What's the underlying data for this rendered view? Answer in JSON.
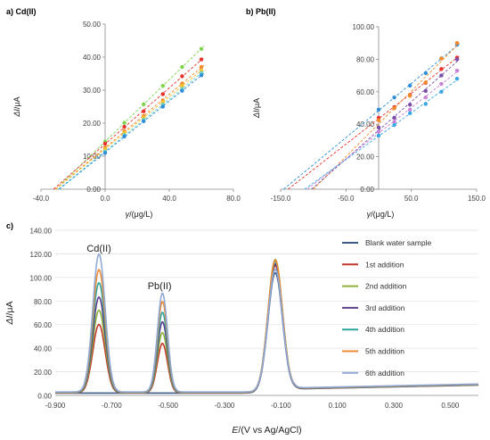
{
  "chart_data": [
    {
      "type": "scatter",
      "panel_label": "a) Cd(II)",
      "xlabel_italic": "γ",
      "xlabel": "/(μg/L)",
      "ylabel_italic": "ΔI",
      "ylabel": "/μA",
      "xlim": [
        -40,
        80
      ],
      "ylim": [
        0,
        50
      ],
      "xticks": [
        "-40.0",
        "0.0",
        "40.0",
        "80.0"
      ],
      "xtick_values": [
        -40,
        0,
        40,
        80
      ],
      "yticks": [
        "0.00",
        "10.00",
        "20.00",
        "30.00",
        "40.00",
        "50.00"
      ],
      "ytick_values": [
        0,
        10,
        20,
        30,
        40,
        50
      ],
      "x": [
        0,
        12,
        24,
        36,
        48,
        60
      ],
      "series": [
        {
          "color": "#7fd34e",
          "values": [
            14.4,
            20.1,
            25.7,
            31.3,
            37.0,
            42.5
          ]
        },
        {
          "color": "#e8322d",
          "values": [
            13.8,
            18.9,
            23.6,
            28.8,
            34.2,
            39.3
          ]
        },
        {
          "color": "#f08a2c",
          "values": [
            12.6,
            17.6,
            22.2,
            26.9,
            32.0,
            37.0
          ]
        },
        {
          "color": "#f2c12e",
          "values": [
            12.1,
            17.1,
            21.7,
            26.4,
            31.3,
            35.9
          ]
        },
        {
          "color": "#6fd3c6",
          "values": [
            11.4,
            16.4,
            21.0,
            25.6,
            30.4,
            35.2
          ]
        },
        {
          "color": "#2e8fd8",
          "values": [
            11.0,
            16.0,
            20.6,
            25.0,
            29.8,
            34.5
          ]
        }
      ]
    },
    {
      "type": "scatter",
      "panel_label": "b) Pb(II)",
      "xlabel_italic": "γ",
      "xlabel": "/(μg/L)",
      "ylabel_italic": "ΔI",
      "ylabel": "/μA",
      "xlim": [
        -150,
        150
      ],
      "ylim": [
        0,
        100
      ],
      "xticks": [
        "-150.0",
        "-50.0",
        "50.0",
        "150.0"
      ],
      "xtick_values": [
        -150,
        -50,
        50,
        150
      ],
      "yticks": [
        "0.00",
        "20.00",
        "40.00",
        "60.00",
        "80.00",
        "100.00"
      ],
      "ytick_values": [
        0,
        20,
        40,
        60,
        80,
        100
      ],
      "x": [
        0,
        24,
        48,
        72,
        96,
        120
      ],
      "series": [
        {
          "color": "#2e8fd8",
          "values": [
            49.0,
            56.5,
            63.8,
            71.5,
            80.5,
            89.0
          ]
        },
        {
          "color": "#e8322d",
          "values": [
            44.0,
            50.5,
            58.0,
            65.5,
            74.0,
            81.0
          ]
        },
        {
          "color": "#f08a2c",
          "values": [
            42.5,
            49.8,
            57.5,
            65.8,
            80.5,
            90.0
          ]
        },
        {
          "color": "#7b4fa8",
          "values": [
            38.0,
            44.0,
            52.0,
            60.5,
            70.0,
            80.0
          ]
        },
        {
          "color": "#c882d6",
          "values": [
            35.5,
            41.5,
            49.0,
            56.5,
            64.8,
            73.0
          ]
        },
        {
          "color": "#39a7e6",
          "values": [
            33.0,
            39.5,
            46.8,
            52.5,
            60.0,
            68.0
          ]
        }
      ]
    },
    {
      "type": "line",
      "panel_label": "c)",
      "xlabel_italic": "E",
      "xlabel": "/(V vs Ag/AgCl)",
      "ylabel_italic": "ΔI",
      "ylabel": "/μA",
      "xlim": [
        -0.9,
        0.6
      ],
      "ylim": [
        0,
        140
      ],
      "xticks": [
        "-0.900",
        "-0.700",
        "-0.500",
        "-0.300",
        "-0.100",
        "0.100",
        "0.300",
        "0.500"
      ],
      "xtick_values": [
        -0.9,
        -0.7,
        -0.5,
        -0.3,
        -0.1,
        0.1,
        0.3,
        0.5
      ],
      "yticks": [
        "0.00",
        "20.00",
        "40.00",
        "60.00",
        "80.00",
        "100.00",
        "120.00",
        "140.00"
      ],
      "ytick_values": [
        0,
        20,
        40,
        60,
        80,
        100,
        120,
        140
      ],
      "annotations": [
        {
          "text": "Cd(II)",
          "x": -0.745,
          "y": 122
        },
        {
          "text": "Pb(II)",
          "x": -0.53,
          "y": 90
        }
      ],
      "peak_positions": {
        "cd": -0.745,
        "pb": -0.52,
        "third": -0.12
      },
      "baseline": 2,
      "legend_position": "right",
      "series": [
        {
          "name": "Blank water sample",
          "color": "#3b5a8a",
          "cd_peak": 0,
          "pb_peak": 0,
          "third_peak": 102
        },
        {
          "name": "1st addition",
          "color": "#c0392b",
          "cd_peak": 58,
          "pb_peak": 42,
          "third_peak": 108
        },
        {
          "name": "2nd addition",
          "color": "#8db33a",
          "cd_peak": 70,
          "pb_peak": 51,
          "third_peak": 113
        },
        {
          "name": "3rd addition",
          "color": "#5b3f8c",
          "cd_peak": 81,
          "pb_peak": 60,
          "third_peak": 109
        },
        {
          "name": "4th addition",
          "color": "#2ea59e",
          "cd_peak": 93,
          "pb_peak": 68,
          "third_peak": 111
        },
        {
          "name": "5th addition",
          "color": "#ec8a34",
          "cd_peak": 104,
          "pb_peak": 77,
          "third_peak": 112
        },
        {
          "name": "6th addition",
          "color": "#8fa9d4",
          "cd_peak": 117,
          "pb_peak": 84,
          "third_peak": 104
        }
      ]
    }
  ]
}
